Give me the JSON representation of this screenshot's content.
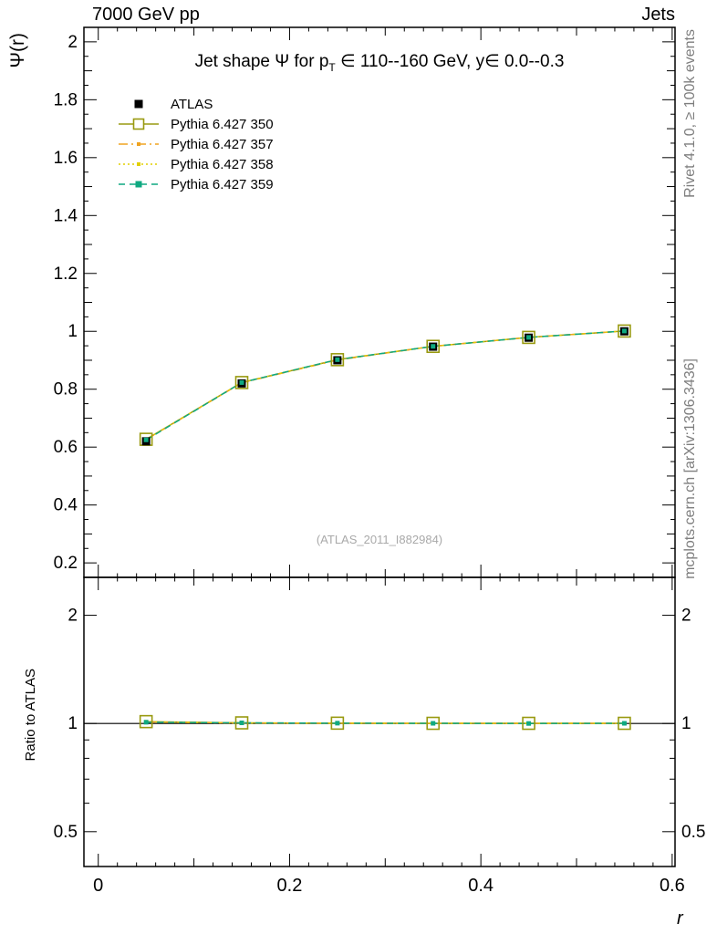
{
  "header": {
    "left": "7000 GeV pp",
    "right": "Jets"
  },
  "axes": {
    "y_main_label": "Ψ(r)",
    "y_ratio_label": "Ratio to ATLAS",
    "x_label": "r"
  },
  "side_labels": {
    "top": "Rivet 4.1.0, ≥ 100k events",
    "bottom": "mcplots.cern.ch [arXiv:1306.3436]"
  },
  "main_panel": {
    "title_pre": "Jet shape Ψ for p",
    "title_sub": "T",
    "title_post": " ∈ 110--160 GeV, y∈ 0.0--0.3",
    "watermark": "(ATLAS_2011_I882984)"
  },
  "colors": {
    "atlas": "#000000",
    "pythia_350": "#999a10",
    "pythia_357": "#efa320",
    "pythia_358": "#e2cf00",
    "pythia_359": "#0fa981",
    "side_text": "#7e7e7e",
    "watermark": "#a9a9a9"
  },
  "chart_data": [
    {
      "type": "line",
      "title": "Jet shape Ψ for pT ∈ 110--160 GeV, y∈ 0.0--0.3",
      "xlabel": "r",
      "ylabel": "Ψ(r)",
      "xlim": [
        -0.015,
        0.603
      ],
      "ylim": [
        0.15,
        2.05
      ],
      "xticks": [
        0,
        0.2,
        0.4,
        0.6
      ],
      "yticks": [
        0.2,
        0.4,
        0.6,
        0.8,
        1.0,
        1.2,
        1.4,
        1.6,
        1.8,
        2.0
      ],
      "grid": false,
      "legend_position": "top-left",
      "x": [
        0.05,
        0.15,
        0.25,
        0.35,
        0.45,
        0.55
      ],
      "series": [
        {
          "name": "ATLAS",
          "color": "#000000",
          "marker": "filled-square",
          "marker_size": 9,
          "line": "none",
          "values": [
            0.62,
            0.82,
            0.9,
            0.947,
            0.978,
            1.0
          ]
        },
        {
          "name": "Pythia 6.427 350",
          "color": "#999a10",
          "marker": "open-square",
          "marker_size": 13,
          "line": "solid",
          "values": [
            0.627,
            0.823,
            0.902,
            0.948,
            0.979,
            1.001
          ]
        },
        {
          "name": "Pythia 6.427 357",
          "color": "#efa320",
          "marker": "small-square",
          "marker_size": 4,
          "line": "dashdot",
          "values": [
            0.626,
            0.822,
            0.901,
            0.948,
            0.979,
            1.001
          ]
        },
        {
          "name": "Pythia 6.427 358",
          "color": "#e2cf00",
          "marker": "small-square",
          "marker_size": 4,
          "line": "dotted",
          "values": [
            0.627,
            0.823,
            0.902,
            0.948,
            0.979,
            1.001
          ]
        },
        {
          "name": "Pythia 6.427 359",
          "color": "#0fa981",
          "marker": "filled-square",
          "marker_size": 5,
          "line": "dashed",
          "values": [
            0.625,
            0.823,
            0.902,
            0.948,
            0.979,
            1.001
          ]
        }
      ]
    },
    {
      "type": "line",
      "title": "Ratio to ATLAS",
      "xlabel": "r",
      "ylabel": "Ratio to ATLAS",
      "yscale": "log",
      "xlim": [
        -0.015,
        0.603
      ],
      "ylim": [
        0.4,
        2.55
      ],
      "xticks": [
        0,
        0.2,
        0.4,
        0.6
      ],
      "yticks": [
        0.5,
        1,
        2
      ],
      "reference_line": 1,
      "x": [
        0.05,
        0.15,
        0.25,
        0.35,
        0.45,
        0.55
      ],
      "series": [
        {
          "name": "Pythia 6.427 350",
          "color": "#999a10",
          "marker": "open-square",
          "marker_size": 13,
          "line": "solid",
          "values": [
            1.012,
            1.004,
            1.002,
            1.001,
            1.001,
            1.001
          ]
        },
        {
          "name": "Pythia 6.427 357",
          "color": "#efa320",
          "marker": "small-square",
          "marker_size": 4,
          "line": "dashdot",
          "values": [
            1.01,
            1.003,
            1.001,
            1.001,
            1.001,
            1.001
          ]
        },
        {
          "name": "Pythia 6.427 358",
          "color": "#e2cf00",
          "marker": "small-square",
          "marker_size": 4,
          "line": "dotted",
          "values": [
            1.011,
            1.003,
            1.002,
            1.001,
            1.001,
            1.001
          ]
        },
        {
          "name": "Pythia 6.427 359",
          "color": "#0fa981",
          "marker": "filled-square",
          "marker_size": 5,
          "line": "dashed",
          "values": [
            1.008,
            1.004,
            1.002,
            1.001,
            1.0,
            1.001
          ]
        }
      ]
    }
  ]
}
